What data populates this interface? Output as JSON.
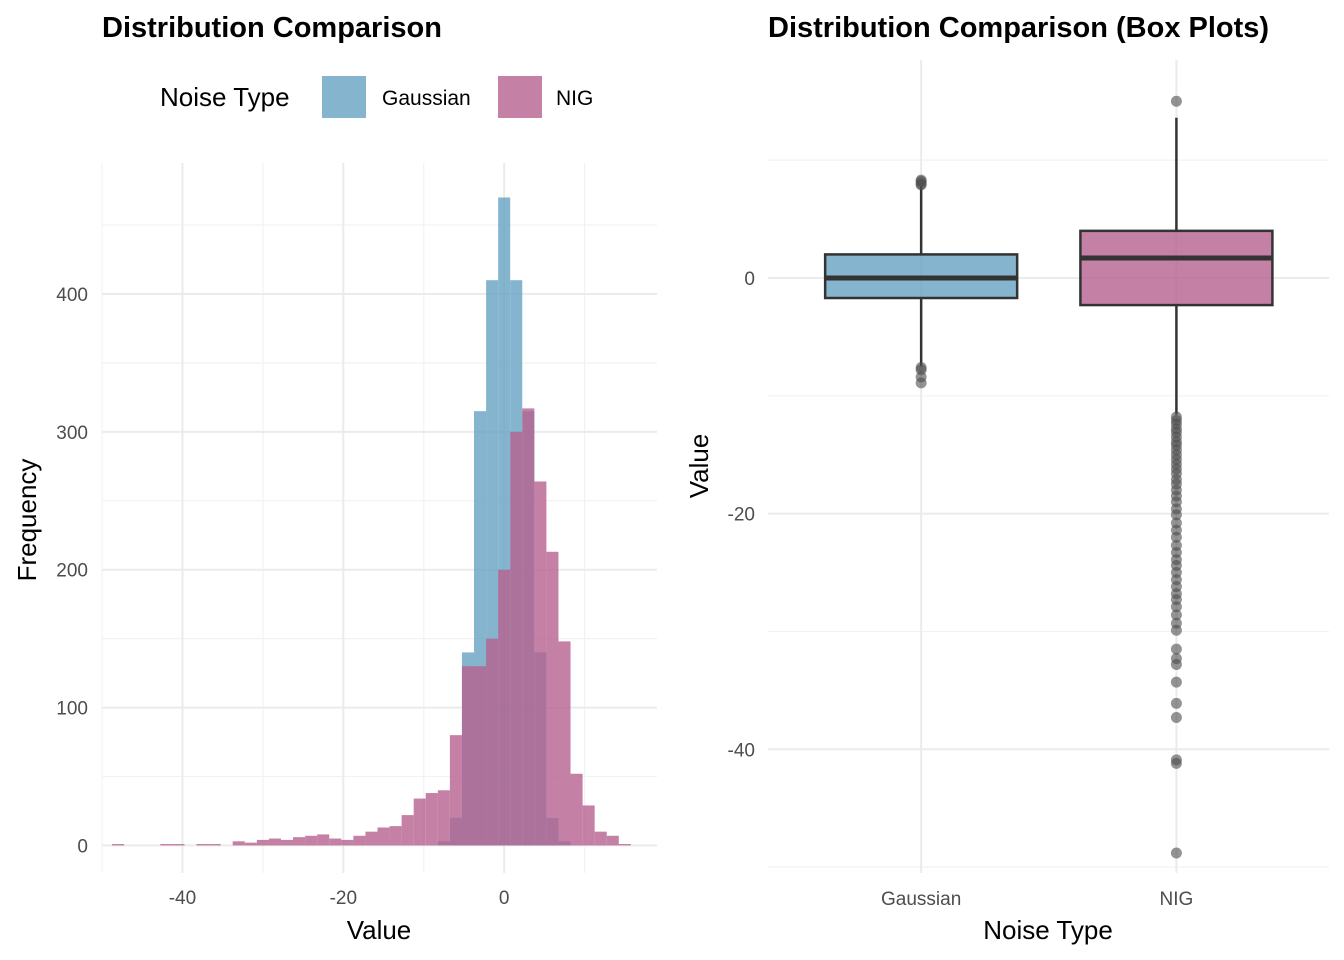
{
  "colors": {
    "gaussian": "#67a3c2",
    "nig": "#b5628e",
    "box_outline": "#333333",
    "outlier": "#4d4d4d"
  },
  "chart_data": [
    {
      "type": "histogram",
      "title": "Distribution Comparison",
      "xlabel": "Value",
      "ylabel": "Frequency",
      "xlim": [
        -50,
        19
      ],
      "ylim": [
        -20,
        495
      ],
      "x_ticks": [
        -40,
        -20,
        0
      ],
      "y_ticks": [
        0,
        100,
        200,
        300,
        400
      ],
      "grid": true,
      "legend": {
        "title": "Noise Type",
        "position": "top",
        "entries": [
          "Gaussian",
          "NIG"
        ]
      },
      "bin_width": 1.5,
      "opacity": 0.8,
      "series": [
        {
          "name": "Gaussian",
          "bin_starts": [
            -8.25,
            -6.75,
            -5.25,
            -3.75,
            -2.25,
            -0.75,
            0.75,
            2.25,
            3.75,
            5.25,
            6.75
          ],
          "counts": [
            3,
            20,
            140,
            315,
            410,
            470,
            410,
            315,
            140,
            20,
            3
          ]
        },
        {
          "name": "NIG",
          "bin_starts": [
            -48.75,
            -42.75,
            -41.25,
            -38.25,
            -36.75,
            -33.75,
            -32.25,
            -30.75,
            -29.25,
            -27.75,
            -26.25,
            -24.75,
            -23.25,
            -21.75,
            -20.25,
            -18.75,
            -17.25,
            -15.75,
            -14.25,
            -12.75,
            -11.25,
            -9.75,
            -8.25,
            -6.75,
            -5.25,
            -3.75,
            -2.25,
            -0.75,
            0.75,
            2.25,
            3.75,
            5.25,
            6.75,
            8.25,
            9.75,
            11.25,
            12.75,
            14.25
          ],
          "counts": [
            1,
            1,
            1,
            1,
            1,
            3,
            2,
            4,
            5,
            4,
            6,
            7,
            8,
            5,
            4,
            7,
            10,
            13,
            14,
            22,
            34,
            38,
            40,
            80,
            130,
            130,
            150,
            200,
            300,
            317,
            264,
            213,
            148,
            52,
            29,
            10,
            7,
            1
          ]
        }
      ]
    },
    {
      "type": "box",
      "title": "Distribution Comparison (Box Plots)",
      "xlabel": "Noise Type",
      "ylabel": "Value",
      "categories": [
        "Gaussian",
        "NIG"
      ],
      "ylim": [
        -50.5,
        18.5
      ],
      "y_ticks": [
        0,
        -20,
        -40
      ],
      "grid": true,
      "series": [
        {
          "name": "Gaussian",
          "q1": -1.7,
          "median": 0.0,
          "q3": 2.0,
          "whisker_low": -7.5,
          "whisker_high": 7.8,
          "outliers": [
            7.9,
            8.0,
            8.2,
            8.3,
            -7.6,
            -7.8,
            -8.4,
            -8.9
          ]
        },
        {
          "name": "NIG",
          "q1": -2.3,
          "median": 1.7,
          "q3": 4.0,
          "whisker_low": -11.6,
          "whisker_high": 13.6,
          "outliers": [
            15.0,
            -11.8,
            -12.1,
            -12.4,
            -12.8,
            -13.1,
            -13.5,
            -13.9,
            -14.2,
            -14.6,
            -15.0,
            -15.4,
            -15.8,
            -16.2,
            -16.6,
            -17.1,
            -17.5,
            -18.0,
            -18.5,
            -19.0,
            -19.6,
            -20.1,
            -20.8,
            -21.4,
            -22.0,
            -22.7,
            -23.3,
            -23.9,
            -24.4,
            -25.0,
            -25.6,
            -26.2,
            -26.8,
            -27.3,
            -27.9,
            -28.6,
            -29.3,
            -29.9,
            -31.5,
            -32.3,
            -32.8,
            -34.3,
            -36.1,
            -37.3,
            -40.9,
            -41.2,
            -48.8
          ]
        }
      ]
    }
  ]
}
